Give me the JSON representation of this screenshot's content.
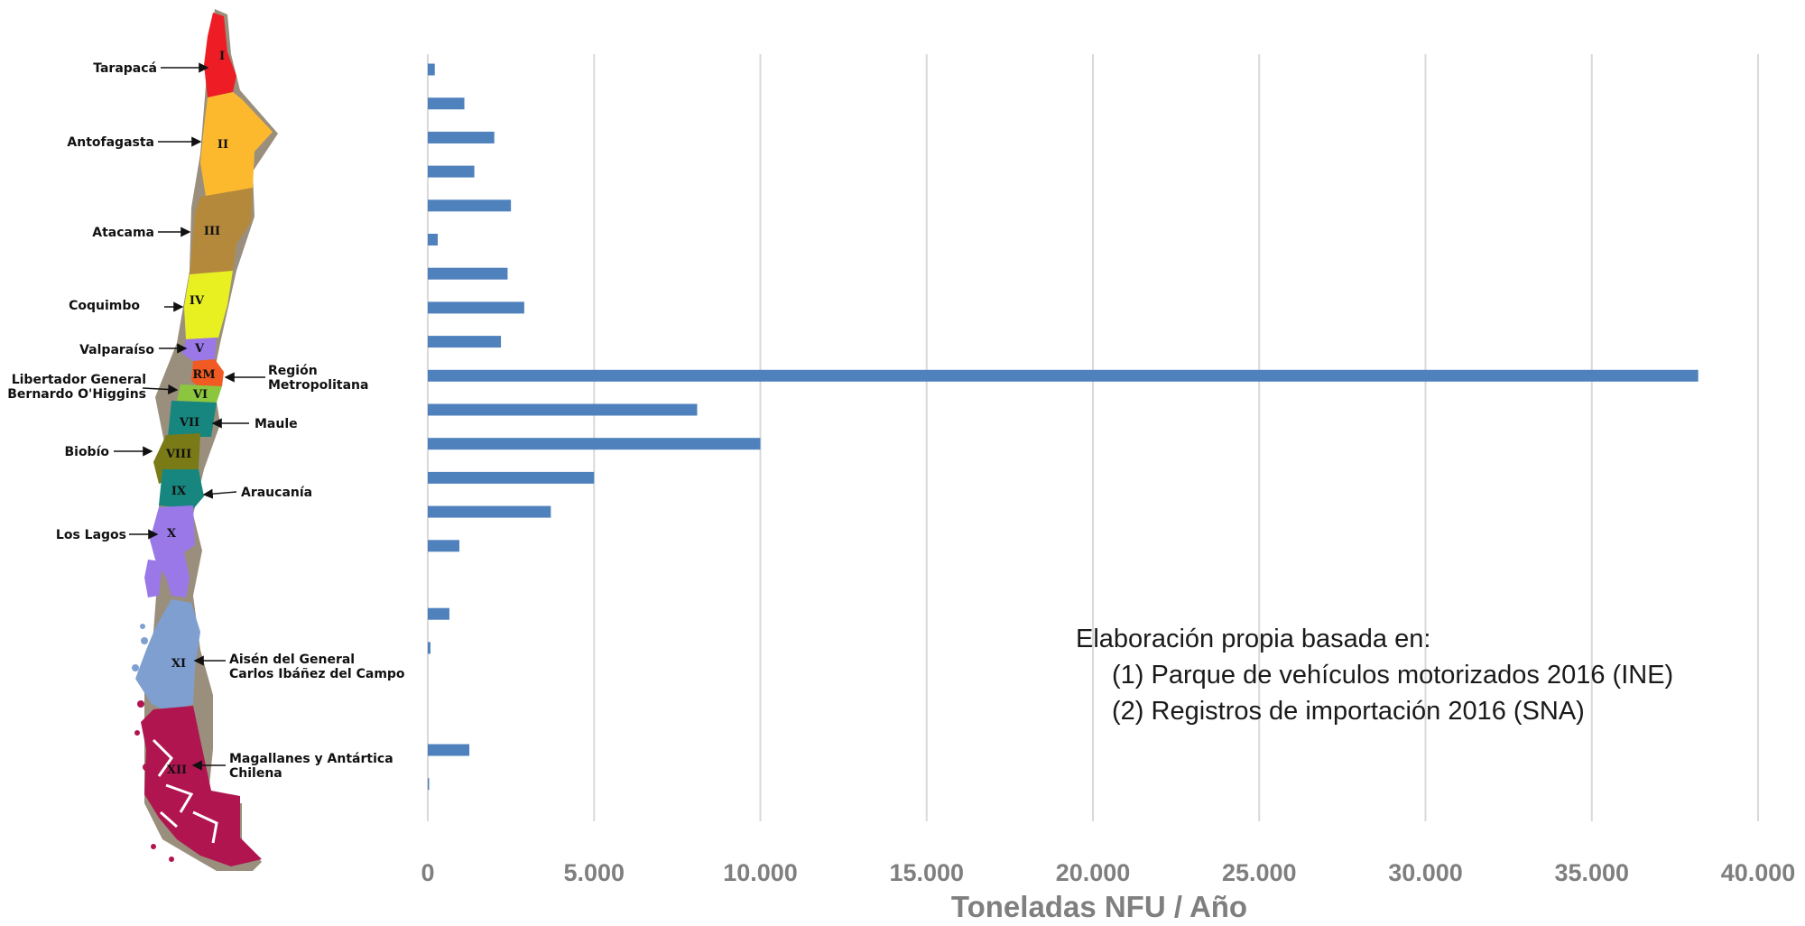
{
  "chart_data": {
    "type": "bar",
    "orientation": "horizontal",
    "xlabel": "Toneladas NFU / Año",
    "xlim": [
      0,
      40000
    ],
    "xticks": [
      0,
      5000,
      10000,
      15000,
      20000,
      25000,
      30000,
      35000,
      40000
    ],
    "xtick_labels": [
      "0",
      "5.000",
      "10.000",
      "15.000",
      "20.000",
      "25.000",
      "30.000",
      "35.000",
      "40.000"
    ],
    "grid": "vertical",
    "bar_color": "#4f81bd",
    "values": [
      210,
      1100,
      2000,
      1400,
      2500,
      300,
      2400,
      2900,
      2200,
      38200,
      8100,
      10000,
      5000,
      3700,
      950,
      null,
      650,
      80,
      null,
      null,
      1250,
      30
    ],
    "annotation": [
      "Elaboración propia basada en:",
      "(1) Parque de vehículos motorizados 2016 (INE)",
      "(2) Registros de importación 2016 (SNA)"
    ]
  },
  "map": {
    "regions": [
      {
        "label": [
          "Tarapacá"
        ],
        "roman": "I",
        "color": "#ee1c24"
      },
      {
        "label": [
          "Antofagasta"
        ],
        "roman": "II",
        "color": "#fdb92e"
      },
      {
        "label": [
          "Atacama"
        ],
        "roman": "III",
        "color": "#b5893c"
      },
      {
        "label": [
          "Coquimbo"
        ],
        "roman": "IV",
        "color": "#e9f022"
      },
      {
        "label": [
          "Valparaíso"
        ],
        "roman": "V",
        "color": "#9a78e8"
      },
      {
        "label": [
          "Región",
          "Metropolitana"
        ],
        "roman": "RM",
        "color": "#f15a22"
      },
      {
        "label": [
          "Libertador General",
          "Bernardo O'Higgins"
        ],
        "roman": "VI",
        "color": "#8cc63f"
      },
      {
        "label": [
          "Maule"
        ],
        "roman": "VII",
        "color": "#16867e"
      },
      {
        "label": [
          "Biobío"
        ],
        "roman": "VIII",
        "color": "#7a7a16"
      },
      {
        "label": [
          "Araucanía"
        ],
        "roman": "IX",
        "color": "#16867e"
      },
      {
        "label": [
          "Los Lagos"
        ],
        "roman": "X",
        "color": "#9a78e8"
      },
      {
        "label": [
          "Aisén del General",
          "Carlos Ibáñez del Campo"
        ],
        "roman": "XI",
        "color": "#7f9fd0"
      },
      {
        "label": [
          "Magallanes y Antártica",
          "Chilena"
        ],
        "roman": "XII",
        "color": "#b0154f"
      }
    ]
  }
}
